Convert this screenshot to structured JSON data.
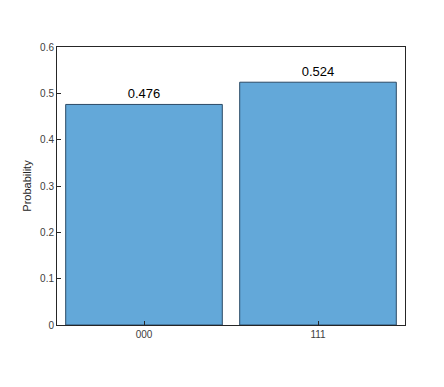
{
  "chart_data": {
    "type": "bar",
    "categories": [
      "000",
      "111"
    ],
    "values": [
      0.476,
      0.524
    ],
    "color": "#63a8d9",
    "ylabel": "Probability",
    "ylim": [
      0,
      0.6
    ],
    "yticks": [
      0,
      0.1,
      0.2,
      0.3,
      0.4,
      0.5,
      0.6
    ],
    "grid": false,
    "data_labels": true
  }
}
